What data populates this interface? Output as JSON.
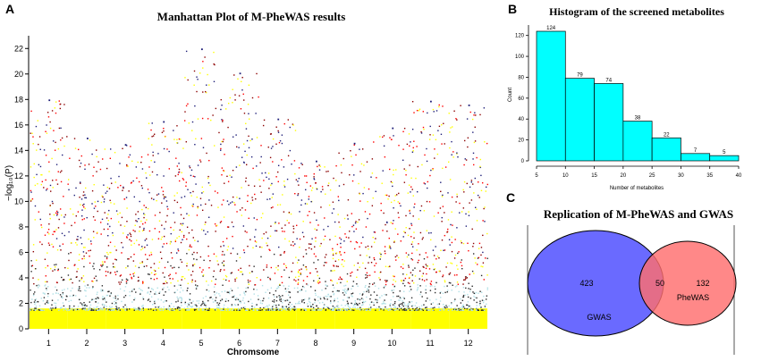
{
  "panels": {
    "A": "A",
    "B": "B",
    "C": "C"
  },
  "chart_data": [
    {
      "type": "scatter",
      "title": "Manhattan Plot of M-PheWAS results",
      "xlabel": "Chromsome",
      "ylabel": "−log₁₀(P)",
      "ylim": [
        0,
        23
      ],
      "yticks": [
        0,
        2,
        4,
        6,
        8,
        10,
        12,
        14,
        16,
        18,
        20,
        22
      ],
      "categories": [
        "1",
        "2",
        "3",
        "4",
        "5",
        "6",
        "7",
        "8",
        "9",
        "10",
        "11",
        "12"
      ],
      "chromosome_peak_values": [
        18.0,
        15.0,
        14.5,
        16.3,
        22.0,
        20.1,
        16.5,
        13.2,
        14.6,
        15.8,
        17.9,
        17.6
      ],
      "colors": [
        "#ffff00",
        "#b0e0e6",
        "#8b0000",
        "#ff0000",
        "#1e1e78",
        "#2a2a2a"
      ]
    },
    {
      "type": "bar",
      "title": "Histogram of the screened metabolites",
      "xlabel": "Number of metabolites",
      "ylabel": "Count",
      "bin_edges": [
        5,
        10,
        15,
        20,
        25,
        30,
        35,
        40
      ],
      "values": [
        124,
        79,
        74,
        38,
        22,
        7,
        5
      ],
      "xticks": [
        5,
        10,
        15,
        20,
        25,
        30,
        35,
        40
      ],
      "yticks": [
        0,
        20,
        40,
        60,
        80,
        100,
        120
      ],
      "ylim": [
        0,
        130
      ],
      "bar_color": "#00ffff"
    },
    {
      "type": "venn",
      "title": "Replication of M-PheWAS and GWAS",
      "sets": [
        {
          "name": "GWAS",
          "only": 423,
          "color": "#6a6aff"
        },
        {
          "name": "PheWAS",
          "only": 132,
          "color": "#ff6e6e"
        }
      ],
      "intersection": 50
    }
  ]
}
